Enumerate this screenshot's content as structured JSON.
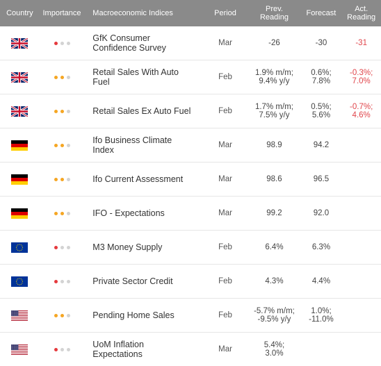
{
  "headers": {
    "country": "Country",
    "importance": "Importance",
    "indices": "Macroeconomic Indices",
    "period": "Period",
    "prev": "Prev.\nReading",
    "forecast": "Forecast",
    "actual": "Act.\nReading"
  },
  "rows": [
    {
      "flag": "uk-flag-icon",
      "importance": 1,
      "name": "GfK Consumer\nConfidence Survey",
      "period": "Mar",
      "prev": "-26",
      "forecast": "-30",
      "actual": "-31"
    },
    {
      "flag": "uk-flag-icon",
      "importance": 2,
      "name": "Retail Sales With Auto\nFuel",
      "period": "Feb",
      "prev": "1.9% m/m;\n9.4% y/y",
      "forecast": "0.6%;\n7.8%",
      "actual": "-0.3%;\n7.0%"
    },
    {
      "flag": "uk-flag-icon",
      "importance": 2,
      "name": "Retail Sales Ex Auto Fuel",
      "period": "Feb",
      "prev": "1.7% m/m;\n7.5% y/y",
      "forecast": "0.5%;\n5.6%",
      "actual": "-0.7%;\n4.6%"
    },
    {
      "flag": "germany-flag-icon",
      "importance": 2,
      "name": "Ifo Business Climate\nIndex",
      "period": "Mar",
      "prev": "98.9",
      "forecast": "94.2",
      "actual": ""
    },
    {
      "flag": "germany-flag-icon",
      "importance": 2,
      "name": "Ifo Current Assessment",
      "period": "Mar",
      "prev": "98.6",
      "forecast": "96.5",
      "actual": ""
    },
    {
      "flag": "germany-flag-icon",
      "importance": 2,
      "name": "IFO - Expectations",
      "period": "Mar",
      "prev": "99.2",
      "forecast": "92.0",
      "actual": ""
    },
    {
      "flag": "eu-flag-icon",
      "importance": 1,
      "name": "M3 Money Supply",
      "period": "Feb",
      "prev": "6.4%",
      "forecast": "6.3%",
      "actual": ""
    },
    {
      "flag": "eu-flag-icon",
      "importance": 1,
      "name": "Private Sector Credit",
      "period": "Feb",
      "prev": "4.3%",
      "forecast": "4.4%",
      "actual": ""
    },
    {
      "flag": "us-flag-icon",
      "importance": 2,
      "name": "Pending Home Sales",
      "period": "Feb",
      "prev": "-5.7% m/m;\n-9.5% y/y",
      "forecast": "1.0%;\n-11.0%",
      "actual": ""
    },
    {
      "flag": "us-flag-icon",
      "importance": 1,
      "name": "UoM Inflation\nExpectations",
      "period": "Mar",
      "prev": "5.4%;\n3.0%",
      "forecast": "",
      "actual": ""
    }
  ],
  "colors": {
    "header_bg": "#8a8a8a",
    "importance_low": "#e5393d",
    "importance_medium": "#f5a623",
    "importance_off": "#d3d3d3",
    "actual_text": "#e0454b"
  }
}
